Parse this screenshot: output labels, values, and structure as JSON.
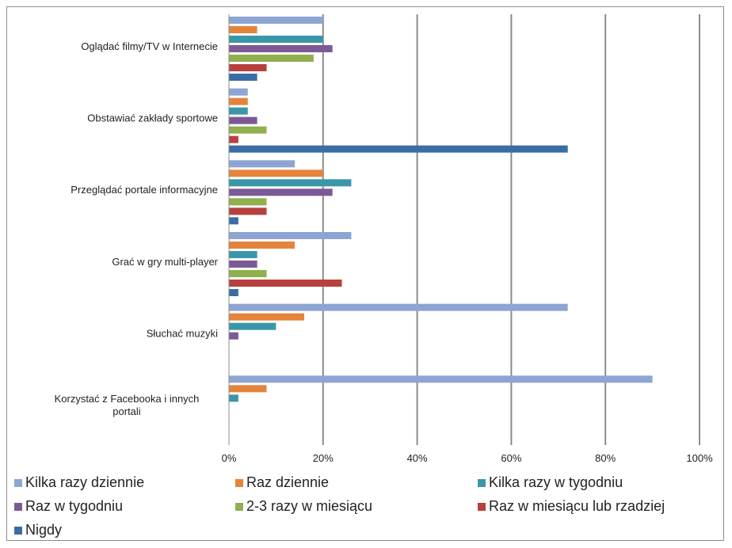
{
  "chart_data": {
    "type": "bar",
    "orientation": "horizontal",
    "categories": [
      "Oglądać filmy/TV w Internecie",
      "Obstawiać zakłady sportowe",
      "Przeglądać portale informacyjne",
      "Grać w gry multi-player",
      "Słuchać muzyki",
      "Korzystać z Facebooka i innych portali"
    ],
    "series": [
      {
        "name": "Kilka razy dziennie",
        "color": "#8EA5D3",
        "values": [
          20,
          4,
          14,
          26,
          72,
          90
        ]
      },
      {
        "name": "Raz dziennie",
        "color": "#E4843B",
        "values": [
          6,
          4,
          20,
          14,
          16,
          8
        ]
      },
      {
        "name": "Kilka razy w tygodniu",
        "color": "#3A97A8",
        "values": [
          20,
          4,
          26,
          6,
          10,
          2
        ]
      },
      {
        "name": "Raz w tygodniu",
        "color": "#7C5A96",
        "values": [
          22,
          6,
          22,
          6,
          2,
          0
        ]
      },
      {
        "name": "2-3 razy w miesiącu",
        "color": "#8FB04D",
        "values": [
          18,
          8,
          8,
          8,
          0,
          0
        ]
      },
      {
        "name": "Raz w miesiącu lub rzadziej",
        "color": "#B8403E",
        "values": [
          8,
          2,
          8,
          24,
          0,
          0
        ]
      },
      {
        "name": "Nigdy",
        "color": "#3A6CA8",
        "values": [
          6,
          72,
          2,
          2,
          0,
          0
        ]
      }
    ],
    "xlim": [
      0,
      100
    ],
    "xticks": [
      "0%",
      "20%",
      "40%",
      "60%",
      "80%",
      "100%"
    ],
    "gridlines": true,
    "legend_position": "bottom",
    "title": "",
    "xlabel": "",
    "ylabel": ""
  }
}
